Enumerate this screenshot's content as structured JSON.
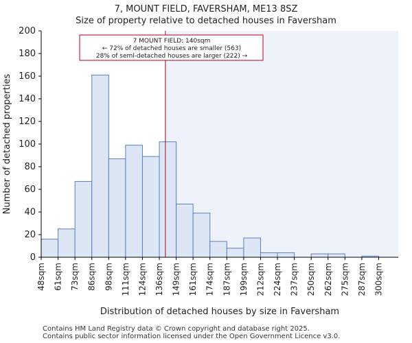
{
  "chart_data": {
    "type": "bar",
    "title": "7, MOUNT FIELD, FAVERSHAM, ME13 8SZ",
    "subtitle": "Size of property relative to detached houses in Faversham",
    "xlabel": "Distribution of detached houses by size in Faversham",
    "ylabel": "Number of detached properties",
    "ylim": [
      0,
      200
    ],
    "yticks": [
      0,
      20,
      40,
      60,
      80,
      100,
      120,
      140,
      160,
      180,
      200
    ],
    "x_range_sqm": [
      48,
      312.5
    ],
    "bin_width_sqm": 12.5,
    "tick_labels": [
      "48sqm",
      "61sqm",
      "73sqm",
      "86sqm",
      "98sqm",
      "111sqm",
      "124sqm",
      "136sqm",
      "149sqm",
      "161sqm",
      "174sqm",
      "187sqm",
      "199sqm",
      "212sqm",
      "224sqm",
      "237sqm",
      "250sqm",
      "262sqm",
      "275sqm",
      "287sqm",
      "300sqm"
    ],
    "values": [
      16,
      25,
      67,
      161,
      87,
      99,
      89,
      102,
      47,
      39,
      14,
      8,
      17,
      4,
      4,
      0,
      3,
      3,
      0,
      1
    ],
    "marker": {
      "value_sqm": 140,
      "label": "7 MOUNT FIELD: 140sqm",
      "line2": "← 72% of detached houses are smaller (563)",
      "line3": "28% of semi-detached houses are larger (222) →"
    },
    "colors": {
      "bar_fill": "#dce6f5",
      "bar_stroke": "#5a7fbf",
      "highlight_bg": "#eef2fa",
      "marker_line": "#b00020",
      "annotation_border": "#b00020"
    }
  },
  "footer": {
    "line1": "Contains HM Land Registry data © Crown copyright and database right 2025.",
    "line2": "Contains public sector information licensed under the Open Government Licence v3.0."
  }
}
